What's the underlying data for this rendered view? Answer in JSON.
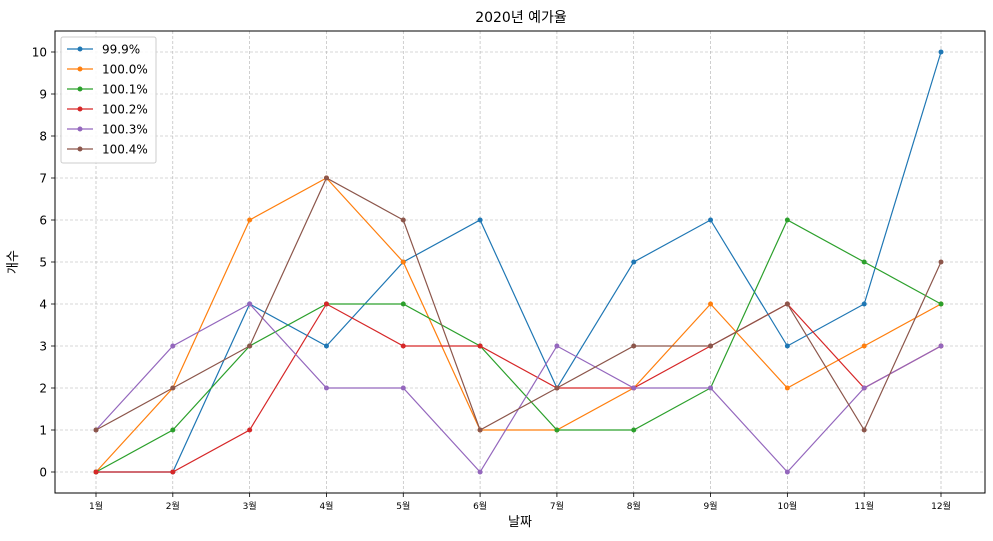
{
  "chart_data": {
    "type": "line",
    "title": "2020년 예가율",
    "xlabel": "날짜",
    "ylabel": "개수",
    "categories": [
      "1월",
      "2월",
      "3월",
      "4월",
      "5월",
      "6월",
      "7월",
      "8월",
      "9월",
      "10월",
      "11월",
      "12월"
    ],
    "ylim": [
      -0.5,
      10.5
    ],
    "yticks": [
      0,
      1,
      2,
      3,
      4,
      5,
      6,
      7,
      8,
      9,
      10
    ],
    "grid": true,
    "legend_position": "top-left",
    "series": [
      {
        "name": "99.9%",
        "color": "#1f77b4",
        "values": [
          0,
          0,
          4,
          3,
          5,
          6,
          2,
          5,
          6,
          3,
          4,
          10
        ]
      },
      {
        "name": "100.0%",
        "color": "#ff7f0e",
        "values": [
          0,
          2,
          6,
          7,
          5,
          1,
          1,
          2,
          4,
          2,
          3,
          4
        ]
      },
      {
        "name": "100.1%",
        "color": "#2ca02c",
        "values": [
          0,
          1,
          3,
          4,
          4,
          3,
          1,
          1,
          2,
          6,
          5,
          4
        ]
      },
      {
        "name": "100.2%",
        "color": "#d62728",
        "values": [
          0,
          0,
          1,
          4,
          3,
          3,
          2,
          2,
          3,
          4,
          2,
          3
        ]
      },
      {
        "name": "100.3%",
        "color": "#9467bd",
        "values": [
          1,
          3,
          4,
          2,
          2,
          0,
          3,
          2,
          2,
          0,
          2,
          3
        ]
      },
      {
        "name": "100.4%",
        "color": "#8c564b",
        "values": [
          1,
          2,
          3,
          7,
          6,
          1,
          2,
          3,
          3,
          4,
          1,
          5
        ]
      }
    ]
  }
}
